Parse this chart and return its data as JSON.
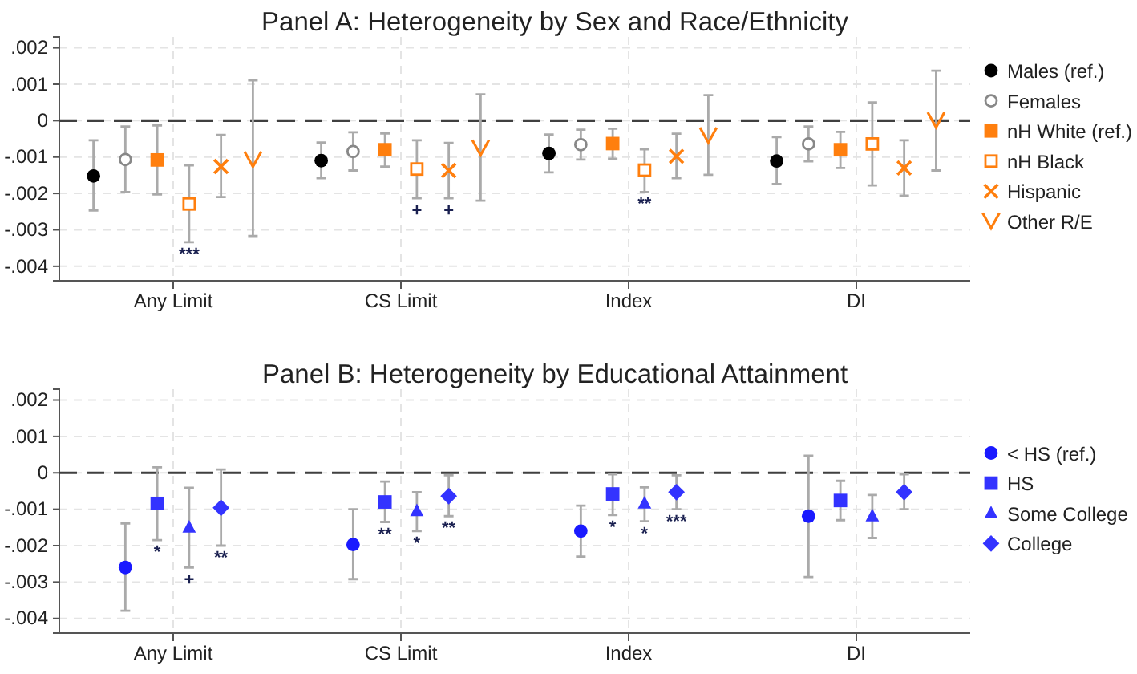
{
  "chart_data": [
    {
      "type": "scatter",
      "title": "Panel A: Heterogeneity by Sex and Race/Ethnicity",
      "legend": "right",
      "grid": true,
      "categories": [
        "Any Limit",
        "CS Limit",
        "Index",
        "DI"
      ],
      "ylim": [
        -0.0044,
        0.0023
      ],
      "yticks": [
        {
          "value": -0.004,
          "label": "-.004"
        },
        {
          "value": -0.003,
          "label": "-.003"
        },
        {
          "value": -0.002,
          "label": "-.002"
        },
        {
          "value": -0.001,
          "label": "-.001"
        },
        {
          "value": 0,
          "label": "0"
        },
        {
          "value": 0.001,
          "label": ".001"
        },
        {
          "value": 0.002,
          "label": ".002"
        }
      ],
      "ref_lines": [
        {
          "axis": "y",
          "value": 0,
          "label": null,
          "color": "#404040",
          "line_style": "dashed"
        }
      ],
      "series": [
        {
          "name": "Males (ref.)",
          "color": "#000000",
          "marker": "circle",
          "values": [
            -0.00152,
            -0.0011,
            -0.0009,
            -0.00111
          ],
          "errors": [
            [
              -0.00247,
              -0.00054
            ],
            [
              -0.00158,
              -0.0006
            ],
            [
              -0.00142,
              -0.00038
            ],
            [
              -0.00174,
              -0.00045
            ]
          ]
        },
        {
          "name": "Females",
          "color": "#888888",
          "marker": "circle-open",
          "values": [
            -0.00107,
            -0.00085,
            -0.00066,
            -0.00064
          ],
          "errors": [
            [
              -0.00196,
              -0.00016
            ],
            [
              -0.00137,
              -0.00032
            ],
            [
              -0.00107,
              -0.00025
            ],
            [
              -0.00112,
              -0.00016
            ]
          ]
        },
        {
          "name": "nH White (ref.)",
          "color": "#ff7f0e",
          "marker": "square",
          "values": [
            -0.00108,
            -0.0008,
            -0.00063,
            -0.0008
          ],
          "errors": [
            [
              -0.00203,
              -0.00013
            ],
            [
              -0.00126,
              -0.00035
            ],
            [
              -0.00105,
              -0.00022
            ],
            [
              -0.0013,
              -0.00031
            ]
          ]
        },
        {
          "name": "nH Black",
          "color": "#ff7f0e",
          "marker": "square-open",
          "values": [
            -0.00229,
            -0.00133,
            -0.00136,
            -0.00064
          ],
          "errors": [
            [
              -0.00334,
              -0.00123
            ],
            [
              -0.00213,
              -0.00054
            ],
            [
              -0.00196,
              -0.00079
            ],
            [
              -0.00178,
              0.0005
            ]
          ],
          "value_labels": [
            "***",
            "+",
            "**",
            null
          ]
        },
        {
          "name": "Hispanic",
          "color": "#ff7f0e",
          "marker": "cross",
          "values": [
            -0.00126,
            -0.00137,
            -0.00098,
            -0.0013
          ],
          "errors": [
            [
              -0.0021,
              -0.00039
            ],
            [
              -0.00213,
              -0.00061
            ],
            [
              -0.00158,
              -0.00036
            ],
            [
              -0.00206,
              -0.00054
            ]
          ],
          "value_labels": [
            null,
            "+",
            null,
            null
          ]
        },
        {
          "name": "Other R/E",
          "color": "#ff7f0e",
          "values": [
            -0.00108,
            -0.00076,
            -0.00042,
            0
          ],
          "errors": [
            [
              -0.00317,
              0.00111
            ],
            [
              -0.0022,
              0.00072
            ],
            [
              -0.00149,
              0.0007
            ],
            [
              -0.00137,
              0.00137
            ]
          ]
        }
      ]
    },
    {
      "type": "scatter",
      "title": "Panel B: Heterogeneity by Educational Attainment",
      "legend": "right",
      "grid": true,
      "categories": [
        "Any Limit",
        "CS Limit",
        "Index",
        "DI"
      ],
      "ylim": [
        -0.0044,
        0.0023
      ],
      "yticks": [
        {
          "value": -0.004,
          "label": "-.004"
        },
        {
          "value": -0.003,
          "label": "-.003"
        },
        {
          "value": -0.002,
          "label": "-.002"
        },
        {
          "value": -0.001,
          "label": "-.001"
        },
        {
          "value": 0,
          "label": "0"
        },
        {
          "value": 0.001,
          "label": ".001"
        },
        {
          "value": 0.002,
          "label": ".002"
        }
      ],
      "ref_lines": [
        {
          "axis": "y",
          "value": 0,
          "label": null,
          "color": "#404040",
          "line_style": "dashed"
        }
      ],
      "series": [
        {
          "name": "< HS (ref.)",
          "color": "#1a1aff",
          "marker": "circle",
          "values": [
            -0.0026,
            -0.00197,
            -0.0016,
            -0.00119
          ],
          "errors": [
            [
              -0.00379,
              -0.00139
            ],
            [
              -0.00292,
              -0.001
            ],
            [
              -0.0023,
              -0.0009
            ],
            [
              -0.00286,
              0.00047
            ]
          ]
        },
        {
          "name": "HS",
          "color": "#3333ff",
          "marker": "square",
          "values": [
            -0.00084,
            -0.0008,
            -0.00058,
            -0.00076
          ],
          "errors": [
            [
              -0.00185,
              0.00015
            ],
            [
              -0.00135,
              -0.00024
            ],
            [
              -0.00116,
              -4e-05
            ],
            [
              -0.0013,
              -0.00022
            ]
          ],
          "value_labels": [
            "*",
            "**",
            "*",
            null
          ]
        },
        {
          "name": "Some College",
          "color": "#3333ff",
          "marker": "triangle",
          "values": [
            -0.0015,
            -0.00105,
            -0.00084,
            -0.00119
          ],
          "errors": [
            [
              -0.0026,
              -0.00041
            ],
            [
              -0.0016,
              -0.00053
            ],
            [
              -0.00133,
              -0.0004
            ],
            [
              -0.00179,
              -0.00061
            ]
          ],
          "value_labels": [
            "+",
            "*",
            "*",
            null
          ]
        },
        {
          "name": "College",
          "color": "#3333ff",
          "marker": "diamond",
          "values": [
            -0.00096,
            -0.00064,
            -0.00053,
            -0.00053
          ],
          "errors": [
            [
              -0.002,
              9e-05
            ],
            [
              -0.00119,
              -7e-05
            ],
            [
              -0.001,
              -7e-05
            ],
            [
              -0.001,
              -4e-05
            ]
          ],
          "value_labels": [
            "**",
            "**",
            "***",
            null
          ]
        }
      ]
    }
  ]
}
